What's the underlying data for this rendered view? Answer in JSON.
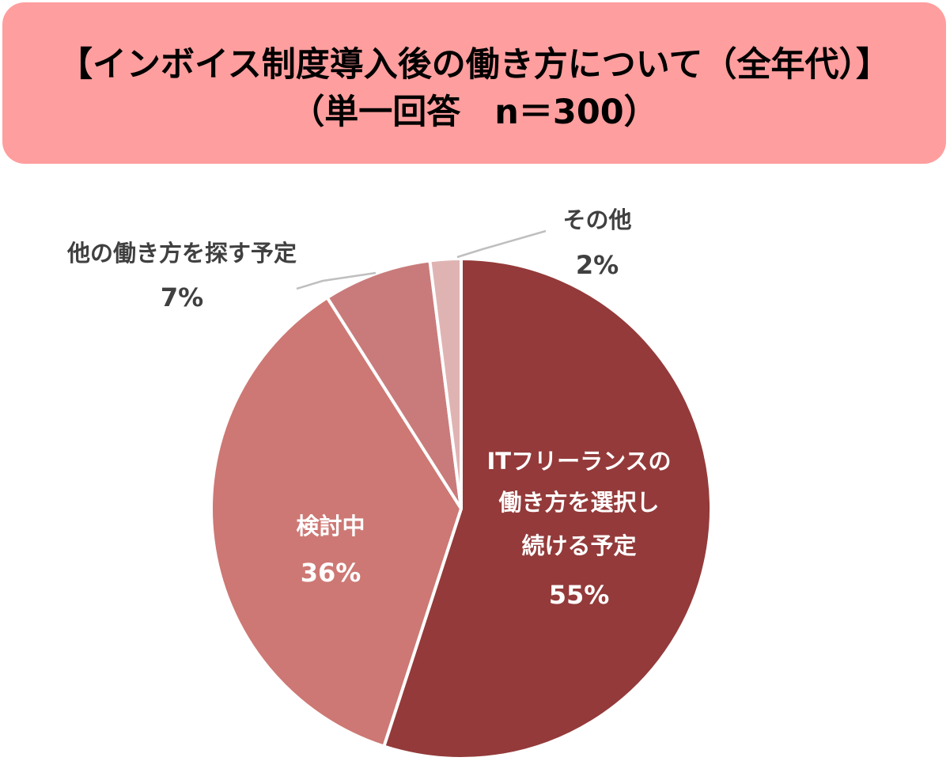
{
  "title": {
    "line1": "【インボイス制度導入後の働き方について（全年代）】",
    "line2": "（単一回答　n＝300）"
  },
  "colors": {
    "title_bg": "#ff9e9e",
    "slices": [
      "#943a3a",
      "#cd7874",
      "#c97b7b",
      "#e0b3b3"
    ],
    "label_inside": "#ffffff",
    "label_outside": "#404040",
    "leader_line": "#bfbfbf"
  },
  "chart_data": {
    "type": "pie",
    "title": "【インボイス制度導入後の働き方について（全年代）】（単一回答　n＝300）",
    "start_angle_deg": 0,
    "direction": "clockwise",
    "slices": [
      {
        "label_lines": [
          "ITフリーランスの",
          "働き方を選択し",
          "続ける予定"
        ],
        "value": 55,
        "value_label": "55%"
      },
      {
        "label_lines": [
          "検討中"
        ],
        "value": 36,
        "value_label": "36%"
      },
      {
        "label_lines": [
          "他の働き方を探す予定"
        ],
        "value": 7,
        "value_label": "7%"
      },
      {
        "label_lines": [
          "その他"
        ],
        "value": 2,
        "value_label": "2%"
      }
    ]
  }
}
